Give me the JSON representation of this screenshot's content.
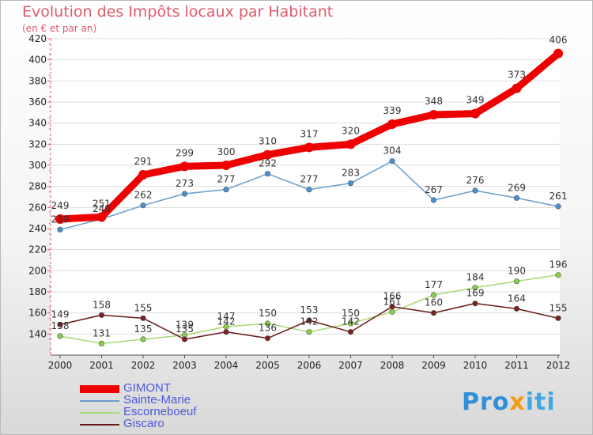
{
  "title": "Evolution des Impôts locaux par Habitant",
  "subtitle": "(en € et par an)",
  "logo": {
    "p1": "Pro",
    "p2": "x",
    "p3": "iti"
  },
  "chart_data": {
    "type": "line",
    "x": [
      "2000",
      "2001",
      "2002",
      "2003",
      "2004",
      "2005",
      "2006",
      "2007",
      "2008",
      "2009",
      "2010",
      "2011",
      "2012"
    ],
    "ylim": [
      120,
      420
    ],
    "yticks": [
      140,
      160,
      180,
      200,
      220,
      240,
      260,
      280,
      300,
      320,
      340,
      360,
      380,
      400,
      420
    ],
    "grid": "horizontal",
    "legend": "bottom-left",
    "series": [
      {
        "name": "GIMONT",
        "color": "#ee0000",
        "width": 9,
        "values": [
          249,
          251,
          291,
          299,
          300,
          310,
          317,
          320,
          339,
          348,
          349,
          373,
          406
        ]
      },
      {
        "name": "Sainte-Marie",
        "color": "#6a9ccc",
        "width": 1.5,
        "marker": "#4a90d0",
        "values": [
          239,
          249,
          262,
          273,
          277,
          292,
          277,
          283,
          304,
          267,
          276,
          269,
          261
        ]
      },
      {
        "name": "Escorneboeuf",
        "color": "#a8d878",
        "width": 1.5,
        "marker": "#88d048",
        "values": [
          138,
          131,
          135,
          139,
          147,
          150,
          142,
          150,
          161,
          177,
          184,
          190,
          196
        ]
      },
      {
        "name": "Giscaro",
        "color": "#6a1a1a",
        "width": 1.5,
        "marker": "#7a2020",
        "values": [
          149,
          158,
          155,
          135,
          142,
          136,
          153,
          142,
          166,
          160,
          169,
          164,
          155
        ]
      }
    ]
  }
}
